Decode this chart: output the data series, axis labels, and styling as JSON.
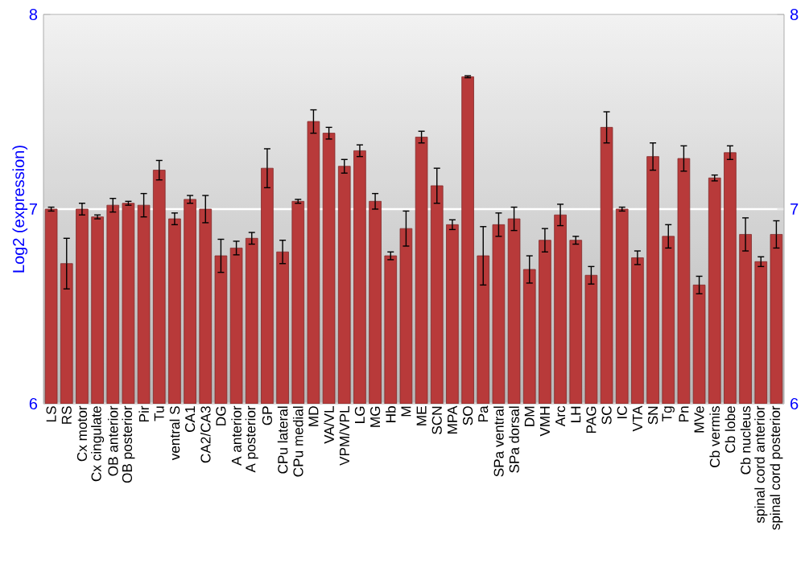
{
  "chart_data": {
    "type": "bar",
    "ylabel": "Log2 (expression)",
    "categories": [
      "LS",
      "RS",
      "Cx motor",
      "Cx cingulate",
      "OB anterior",
      "OB posterior",
      "Pir",
      "Tu",
      "ventral S",
      "CA1",
      "CA2/CA3",
      "DG",
      "A anterior",
      "A posterior",
      "GP",
      "CPu lateral",
      "CPu medial",
      "MD",
      "VA/VL",
      "VPM/VPL",
      "LG",
      "MG",
      "Hb",
      "M",
      "ME",
      "SCN",
      "MPA",
      "SO",
      "Pa",
      "SPa ventral",
      "SPa dorsal",
      "DM",
      "VMH",
      "Arc",
      "LH",
      "PAG",
      "SC",
      "IC",
      "VTA",
      "SN",
      "Tg",
      "Pn",
      "MVe",
      "Cb vermis",
      "Cb lobe",
      "Cb nucleus",
      "spinal cord anterior",
      "spinal cord posterior"
    ],
    "values": [
      7.0,
      6.72,
      7.0,
      6.96,
      7.02,
      7.03,
      7.02,
      7.2,
      6.95,
      7.05,
      7.0,
      6.76,
      6.8,
      6.85,
      7.21,
      6.78,
      7.04,
      7.45,
      7.39,
      7.22,
      7.3,
      7.04,
      6.76,
      6.9,
      7.37,
      7.12,
      6.92,
      7.68,
      6.76,
      6.92,
      6.95,
      6.69,
      6.84,
      6.97,
      6.84,
      6.66,
      7.42,
      7.0,
      6.75,
      7.27,
      6.86,
      7.26,
      6.61,
      7.16,
      7.29,
      6.87,
      6.73,
      6.87
    ],
    "errors": [
      0.01,
      0.13,
      0.03,
      0.01,
      0.035,
      0.01,
      0.06,
      0.05,
      0.03,
      0.02,
      0.07,
      0.085,
      0.035,
      0.03,
      0.1,
      0.06,
      0.01,
      0.06,
      0.03,
      0.035,
      0.03,
      0.04,
      0.02,
      0.09,
      0.03,
      0.09,
      0.025,
      0.005,
      0.15,
      0.06,
      0.06,
      0.07,
      0.06,
      0.055,
      0.02,
      0.045,
      0.08,
      0.01,
      0.035,
      0.07,
      0.06,
      0.065,
      0.045,
      0.015,
      0.035,
      0.085,
      0.025,
      0.07
    ],
    "color": "#b83a3a",
    "ylim": [
      6,
      8
    ],
    "yticks": [
      6,
      7,
      8
    ],
    "y2lim": [
      6,
      8
    ],
    "y2ticks": [
      6,
      7,
      8
    ],
    "grid": "y"
  }
}
